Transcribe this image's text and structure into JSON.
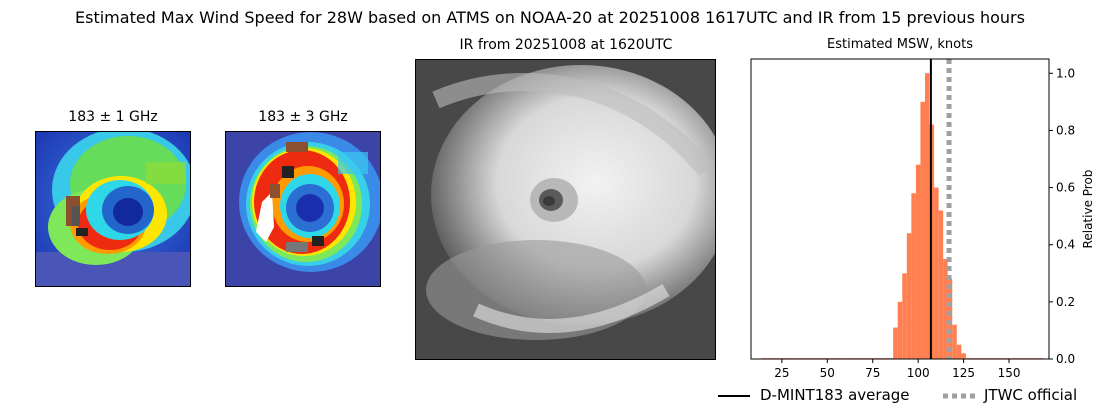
{
  "figure": {
    "suptitle": "Estimated Max Wind Speed for 28W based on ATMS on NOAA-20 at 20251008 1617UTC and IR from 15 previous hours"
  },
  "panels": {
    "mw1": {
      "title": "183 ± 1 GHz"
    },
    "mw2": {
      "title": "183 ± 3 GHz"
    },
    "ir": {
      "title": "IR from 20251008 at 1620UTC"
    },
    "hist": {
      "title": "Estimated MSW, knots",
      "ylabel": "Relative Prob"
    }
  },
  "legend": {
    "entries": [
      "D-MINT183 average",
      "JTWC official"
    ]
  },
  "colors": {
    "bars": "#ff7f50",
    "average_line": "#000000",
    "official_line": "#a0a0a0"
  },
  "chart_data": {
    "type": "bar",
    "title": "Estimated MSW, knots",
    "xlabel": "",
    "ylabel": "Relative Prob",
    "xlim": [
      8,
      172
    ],
    "ylim": [
      0,
      1.05
    ],
    "xticks": [
      25,
      50,
      75,
      100,
      125,
      150
    ],
    "yticks": [
      0.0,
      0.2,
      0.4,
      0.6,
      0.8,
      1.0
    ],
    "bin_width": 2.5,
    "x": [
      15,
      17.5,
      20,
      22.5,
      25,
      27.5,
      30,
      32.5,
      35,
      37.5,
      40,
      42.5,
      45,
      47.5,
      50,
      52.5,
      55,
      57.5,
      60,
      62.5,
      65,
      67.5,
      70,
      72.5,
      75,
      77.5,
      80,
      82.5,
      85,
      87.5,
      90,
      92.5,
      95,
      97.5,
      100,
      102.5,
      105,
      107.5,
      110,
      112.5,
      115,
      117.5,
      120,
      122.5,
      125,
      127.5,
      130,
      132.5,
      135,
      137.5,
      140,
      142.5,
      145,
      147.5,
      150,
      152.5,
      155,
      157.5,
      160,
      162.5,
      165,
      167.5
    ],
    "values": [
      0.003,
      0.003,
      0.003,
      0.003,
      0.003,
      0.003,
      0.003,
      0.003,
      0.003,
      0.003,
      0.003,
      0.003,
      0.003,
      0.003,
      0.003,
      0.003,
      0.003,
      0.003,
      0.003,
      0.003,
      0.003,
      0.003,
      0.003,
      0.003,
      0.003,
      0.003,
      0.003,
      0.003,
      0.003,
      0.11,
      0.2,
      0.3,
      0.44,
      0.58,
      0.68,
      0.9,
      1.0,
      0.82,
      0.6,
      0.52,
      0.35,
      0.28,
      0.12,
      0.05,
      0.02,
      0.003,
      0.003,
      0.003,
      0.003,
      0.003,
      0.003,
      0.003,
      0.003,
      0.003,
      0.003,
      0.003,
      0.003,
      0.003,
      0.003,
      0.003,
      0.003,
      0.003
    ],
    "series": [
      {
        "name": "D-MINT183 average",
        "x": 107,
        "style": "solid"
      },
      {
        "name": "JTWC official",
        "x": 117,
        "style": "dotted"
      }
    ]
  }
}
